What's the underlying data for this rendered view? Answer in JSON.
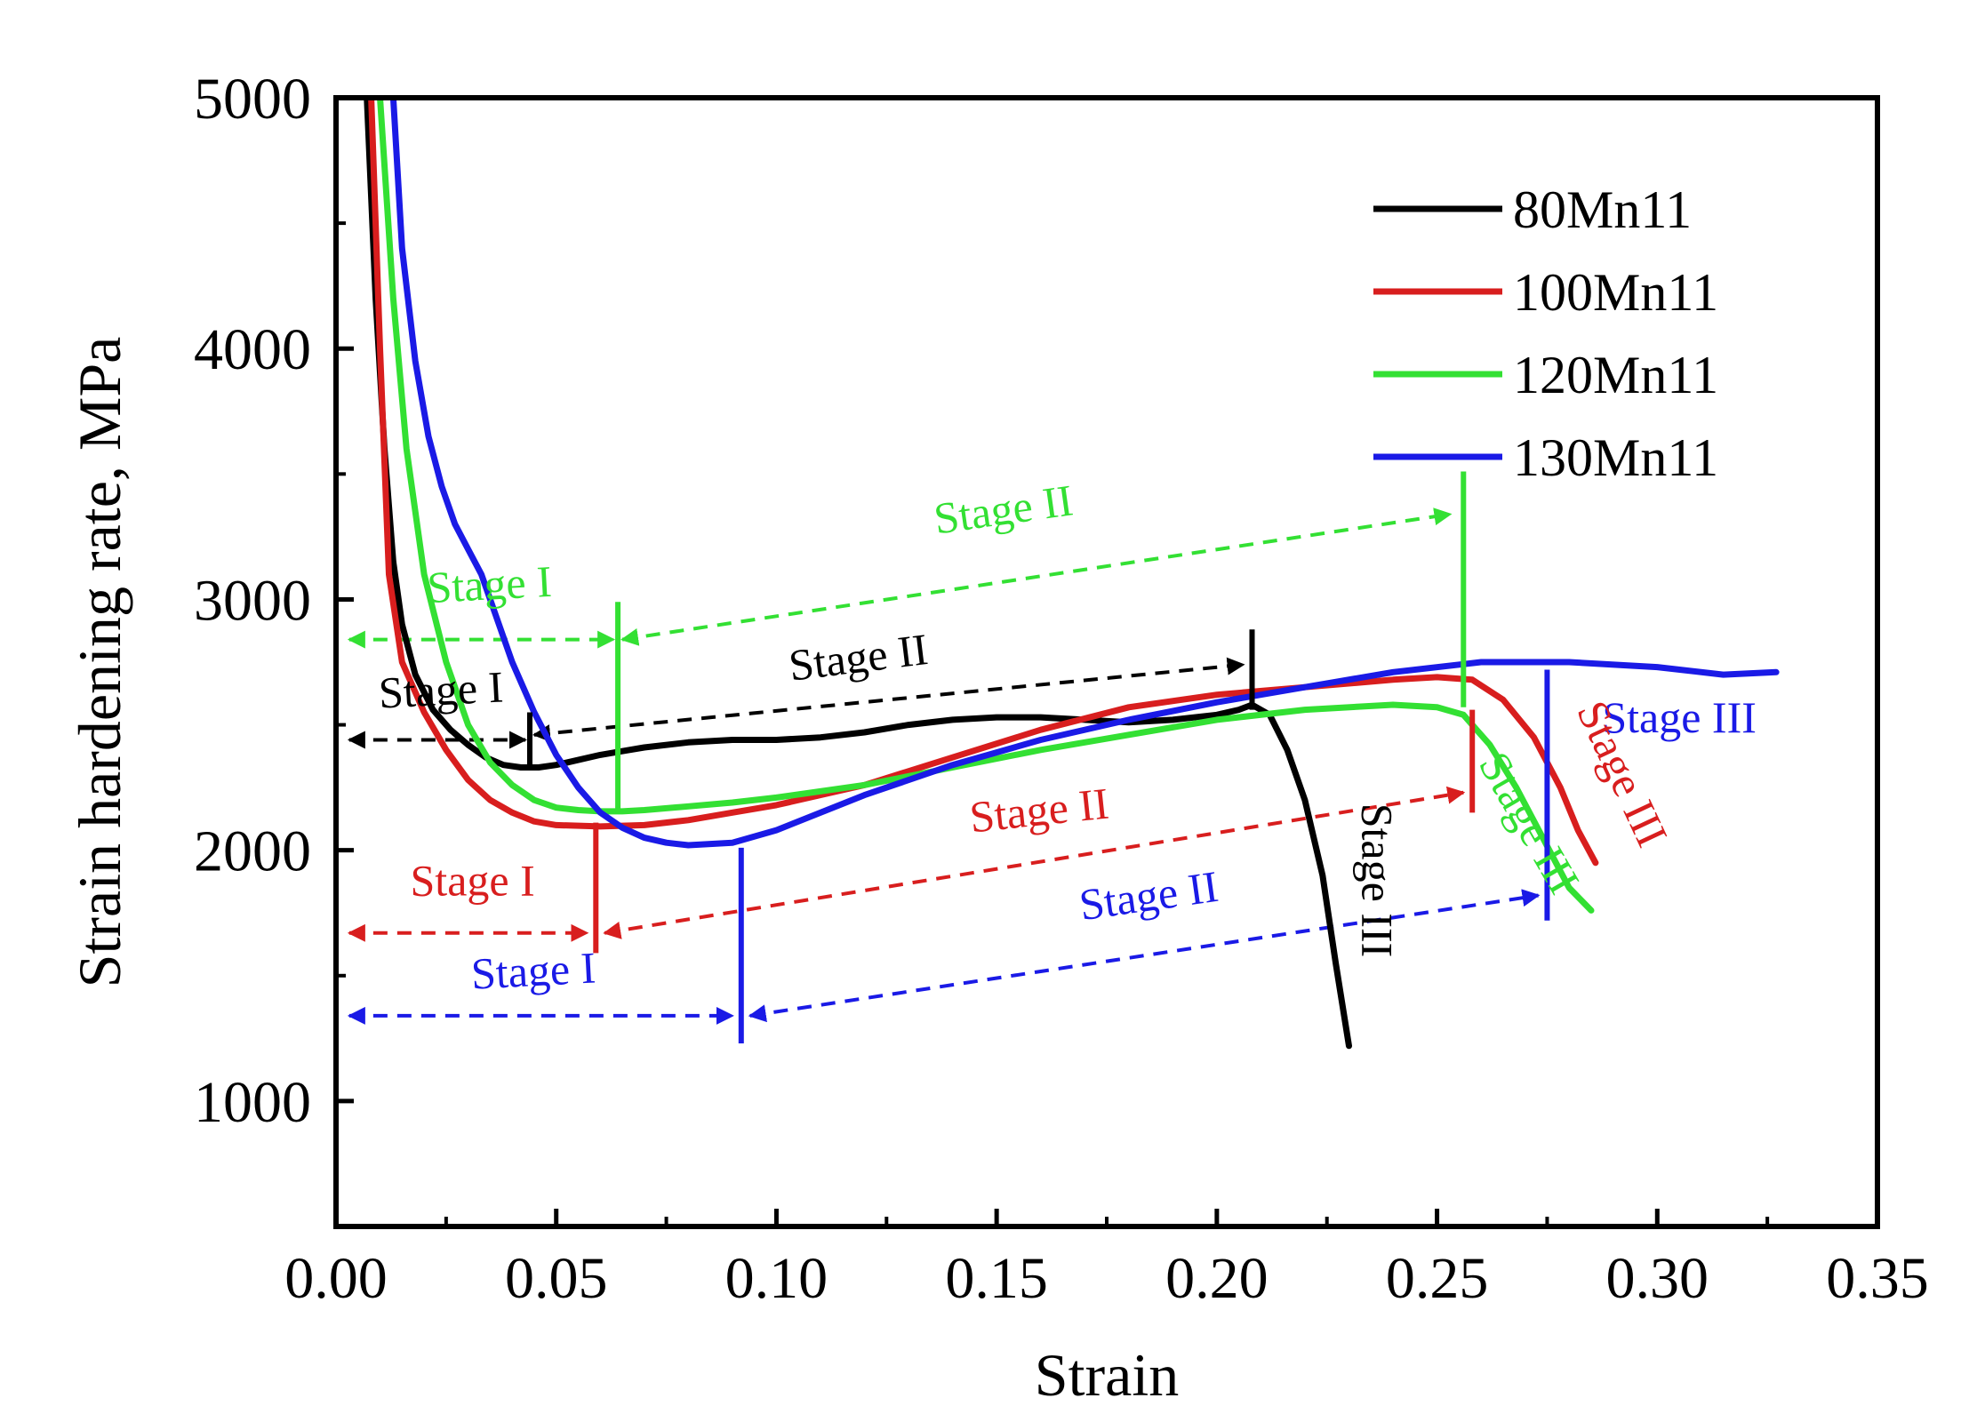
{
  "chart_data": {
    "type": "line",
    "title": "",
    "xlabel": "Strain",
    "ylabel": "Strain hardening rate, MPa",
    "xlim": [
      0.0,
      0.35
    ],
    "ylim": [
      500,
      5000
    ],
    "xticks": [
      "0.00",
      "0.05",
      "0.10",
      "0.15",
      "0.20",
      "0.25",
      "0.30",
      "0.35"
    ],
    "xtick_values": [
      0.0,
      0.05,
      0.1,
      0.15,
      0.2,
      0.25,
      0.3,
      0.35
    ],
    "yticks": [
      "1000",
      "2000",
      "3000",
      "4000",
      "5000"
    ],
    "ytick_values": [
      1000,
      2000,
      3000,
      4000,
      5000
    ],
    "legend_position": "top-right",
    "series": [
      {
        "name": "80Mn11",
        "color": "#000000",
        "x": [
          0.007,
          0.009,
          0.011,
          0.013,
          0.015,
          0.018,
          0.022,
          0.026,
          0.03,
          0.034,
          0.038,
          0.042,
          0.046,
          0.05,
          0.055,
          0.06,
          0.065,
          0.07,
          0.08,
          0.09,
          0.1,
          0.11,
          0.12,
          0.13,
          0.14,
          0.15,
          0.16,
          0.17,
          0.18,
          0.19,
          0.2,
          0.205,
          0.208,
          0.212,
          0.216,
          0.22,
          0.224,
          0.227,
          0.23
        ],
        "y": [
          5000,
          4200,
          3600,
          3150,
          2900,
          2700,
          2560,
          2480,
          2420,
          2370,
          2340,
          2330,
          2330,
          2340,
          2360,
          2380,
          2395,
          2410,
          2430,
          2440,
          2440,
          2450,
          2470,
          2500,
          2520,
          2530,
          2530,
          2520,
          2510,
          2520,
          2540,
          2560,
          2580,
          2540,
          2400,
          2200,
          1900,
          1550,
          1220
        ]
      },
      {
        "name": "100Mn11",
        "color": "#d81e1e",
        "x": [
          0.008,
          0.01,
          0.012,
          0.015,
          0.02,
          0.025,
          0.03,
          0.035,
          0.04,
          0.045,
          0.05,
          0.06,
          0.07,
          0.08,
          0.09,
          0.1,
          0.12,
          0.14,
          0.16,
          0.18,
          0.2,
          0.22,
          0.24,
          0.25,
          0.258,
          0.265,
          0.272,
          0.278,
          0.282,
          0.286
        ],
        "y": [
          5000,
          4000,
          3100,
          2750,
          2550,
          2400,
          2280,
          2200,
          2150,
          2115,
          2100,
          2095,
          2100,
          2120,
          2150,
          2180,
          2260,
          2370,
          2480,
          2570,
          2620,
          2650,
          2680,
          2690,
          2680,
          2600,
          2450,
          2250,
          2080,
          1950
        ]
      },
      {
        "name": "120Mn11",
        "color": "#33e033",
        "x": [
          0.01,
          0.013,
          0.016,
          0.02,
          0.025,
          0.03,
          0.035,
          0.04,
          0.045,
          0.05,
          0.055,
          0.06,
          0.065,
          0.07,
          0.08,
          0.09,
          0.1,
          0.12,
          0.14,
          0.16,
          0.18,
          0.2,
          0.22,
          0.24,
          0.25,
          0.256,
          0.262,
          0.268,
          0.274,
          0.28,
          0.285
        ],
        "y": [
          5000,
          4200,
          3600,
          3100,
          2750,
          2500,
          2350,
          2260,
          2200,
          2170,
          2160,
          2155,
          2155,
          2160,
          2175,
          2190,
          2210,
          2260,
          2330,
          2400,
          2460,
          2520,
          2560,
          2580,
          2570,
          2540,
          2420,
          2250,
          2050,
          1850,
          1760
        ]
      },
      {
        "name": "130Mn11",
        "color": "#1a1ae6",
        "x": [
          0.013,
          0.015,
          0.018,
          0.021,
          0.024,
          0.027,
          0.03,
          0.033,
          0.036,
          0.04,
          0.045,
          0.05,
          0.055,
          0.06,
          0.065,
          0.07,
          0.075,
          0.08,
          0.09,
          0.1,
          0.12,
          0.14,
          0.16,
          0.18,
          0.2,
          0.22,
          0.24,
          0.26,
          0.28,
          0.3,
          0.315,
          0.327
        ],
        "y": [
          5000,
          4400,
          3950,
          3650,
          3450,
          3300,
          3200,
          3100,
          2950,
          2750,
          2550,
          2380,
          2250,
          2150,
          2090,
          2050,
          2030,
          2020,
          2030,
          2080,
          2220,
          2340,
          2440,
          2520,
          2590,
          2650,
          2710,
          2750,
          2750,
          2730,
          2700,
          2710
        ]
      }
    ],
    "stage_markers": [
      {
        "color": "#000000",
        "x": 0.044,
        "y1": 2320,
        "y2": 2550
      },
      {
        "color": "#000000",
        "x": 0.208,
        "y1": 2560,
        "y2": 2880
      },
      {
        "color": "#33e033",
        "x": 0.064,
        "y1": 2150,
        "y2": 2990
      },
      {
        "color": "#33e033",
        "x": 0.256,
        "y1": 2570,
        "y2": 3510
      },
      {
        "color": "#d81e1e",
        "x": 0.059,
        "y1": 1590,
        "y2": 2110
      },
      {
        "color": "#d81e1e",
        "x": 0.258,
        "y1": 2150,
        "y2": 2560
      },
      {
        "color": "#1a1ae6",
        "x": 0.092,
        "y1": 1230,
        "y2": 2010
      },
      {
        "color": "#1a1ae6",
        "x": 0.275,
        "y1": 1720,
        "y2": 2720
      }
    ],
    "stage_arrows": [
      {
        "color": "#000000",
        "x1": 0.003,
        "y1": 2440,
        "x2": 0.043,
        "y2": 2440,
        "double": true
      },
      {
        "color": "#000000",
        "x1": 0.045,
        "y1": 2460,
        "x2": 0.206,
        "y2": 2740,
        "double": true
      },
      {
        "color": "#33e033",
        "x1": 0.003,
        "y1": 2840,
        "x2": 0.063,
        "y2": 2840,
        "double": true
      },
      {
        "color": "#33e033",
        "x1": 0.065,
        "y1": 2840,
        "x2": 0.253,
        "y2": 3340,
        "double": true
      },
      {
        "color": "#d81e1e",
        "x1": 0.003,
        "y1": 1670,
        "x2": 0.057,
        "y2": 1670,
        "double": true
      },
      {
        "color": "#d81e1e",
        "x1": 0.061,
        "y1": 1670,
        "x2": 0.256,
        "y2": 2230,
        "double": true
      },
      {
        "color": "#1a1ae6",
        "x1": 0.003,
        "y1": 1340,
        "x2": 0.09,
        "y2": 1340,
        "double": true
      },
      {
        "color": "#1a1ae6",
        "x1": 0.094,
        "y1": 1340,
        "x2": 0.273,
        "y2": 1820,
        "double": true
      }
    ],
    "annotations": [
      {
        "text": "Stage I",
        "color": "#33e033",
        "x": 0.035,
        "y": 3000,
        "rotate": -3
      },
      {
        "text": "Stage II",
        "color": "#33e033",
        "x": 0.152,
        "y": 3300,
        "rotate": -8
      },
      {
        "text": "Stage I",
        "color": "#000000",
        "x": 0.024,
        "y": 2580,
        "rotate": -3
      },
      {
        "text": "Stage II",
        "color": "#000000",
        "x": 0.119,
        "y": 2710,
        "rotate": -7
      },
      {
        "text": "Stage III",
        "color": "#000000",
        "x": 0.233,
        "y": 1880,
        "rotate": 90
      },
      {
        "text": "Stage II",
        "color": "#d81e1e",
        "x": 0.16,
        "y": 2100,
        "rotate": -6
      },
      {
        "text": "Stage I",
        "color": "#d81e1e",
        "x": 0.031,
        "y": 1820,
        "rotate": 0
      },
      {
        "text": "Stage II",
        "color": "#1a1ae6",
        "x": 0.185,
        "y": 1760,
        "rotate": -8
      },
      {
        "text": "Stage I",
        "color": "#1a1ae6",
        "x": 0.045,
        "y": 1460,
        "rotate": -3
      },
      {
        "text": "Stage III",
        "color": "#1a1ae6",
        "x": 0.305,
        "y": 2470,
        "rotate": 0
      },
      {
        "text": "Stage III",
        "color": "#33e033",
        "x": 0.268,
        "y": 2080,
        "rotate": 60
      },
      {
        "text": "Stage III",
        "color": "#d81e1e",
        "x": 0.289,
        "y": 2280,
        "rotate": 65
      }
    ]
  }
}
